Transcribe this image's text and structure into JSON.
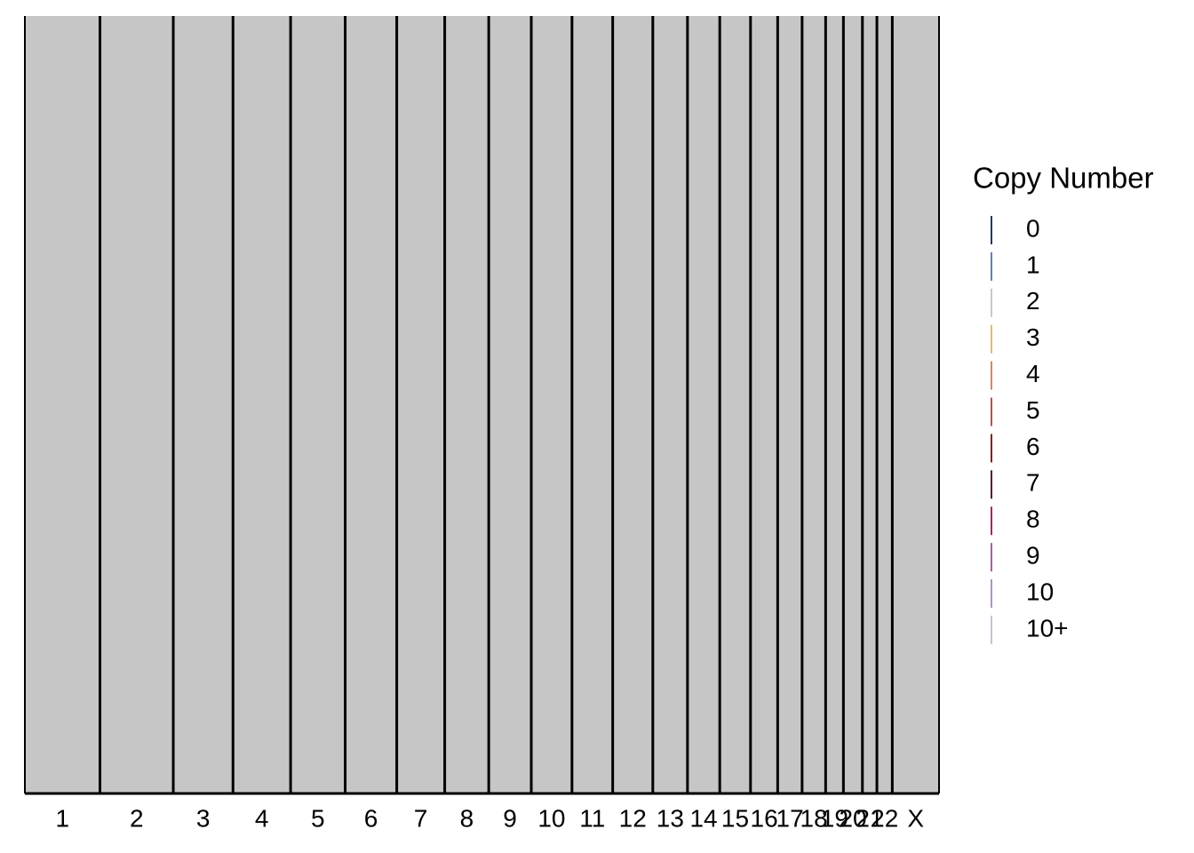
{
  "chart_data": {
    "type": "genome-heatmap",
    "categories": [
      "1",
      "2",
      "3",
      "4",
      "5",
      "6",
      "7",
      "8",
      "9",
      "10",
      "11",
      "12",
      "13",
      "14",
      "15",
      "16",
      "17",
      "18",
      "19",
      "20",
      "21",
      "22",
      "X"
    ],
    "values": [
      249,
      243,
      198,
      191,
      181,
      171,
      159,
      146,
      141,
      135,
      135,
      133,
      115,
      107,
      102,
      90,
      81,
      78,
      59,
      63,
      48,
      51,
      155
    ],
    "color": "#c6c6c6",
    "legend": {
      "title": "Copy Number",
      "items": [
        {
          "name": "0",
          "color": "#1f3a6e"
        },
        {
          "name": "1",
          "color": "#5b7fbf"
        },
        {
          "name": "2",
          "color": "#c8c8c8"
        },
        {
          "name": "3",
          "color": "#e8b86a"
        },
        {
          "name": "4",
          "color": "#d9875a"
        },
        {
          "name": "5",
          "color": "#c0503f"
        },
        {
          "name": "6",
          "color": "#8b1a1a"
        },
        {
          "name": "7",
          "color": "#5a1030"
        },
        {
          "name": "8",
          "color": "#b0206a"
        },
        {
          "name": "9",
          "color": "#b05aa8"
        },
        {
          "name": "10",
          "color": "#b490c8"
        },
        {
          "name": "10+",
          "color": "#d0bce0"
        }
      ]
    }
  }
}
